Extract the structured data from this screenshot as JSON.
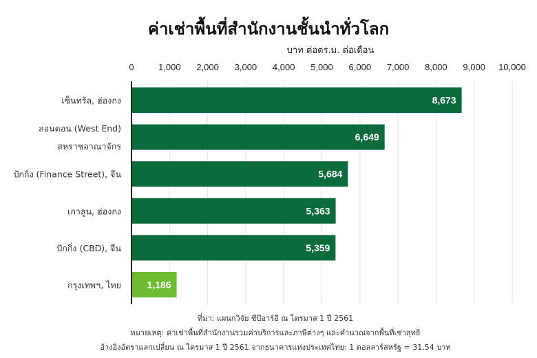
{
  "chart_data": {
    "type": "bar",
    "orientation": "horizontal",
    "title": "ค่าเช่าพื้นที่สำนักงานชั้นนำทั่วโลก",
    "xlabel": "บาท ต่อตร.ม. ต่อเดือน",
    "xlim": [
      0,
      10000
    ],
    "ticks": [
      "0",
      "1,000",
      "2,000",
      "3,000",
      "4,000",
      "5,000",
      "6,000",
      "7,000",
      "8,000",
      "9,000",
      "10,000"
    ],
    "grid": true,
    "categories": [
      [
        "เซ็นทรัล, ฮ่องกง"
      ],
      [
        "ลอนดอน (West End)",
        "สหราชอาณาจักร"
      ],
      [
        "ปักกิ่ง (Finance Street), จีน"
      ],
      [
        "เกาลูน, ฮ่องกง"
      ],
      [
        "ปักกิ่ง (CBD), จีน"
      ],
      [
        "กรุงเทพฯ, ไทย"
      ]
    ],
    "values": [
      8673,
      6649,
      5684,
      5363,
      5359,
      1186
    ],
    "labels": [
      "8,673",
      "6,649",
      "5,684",
      "5,363",
      "5,359",
      "1,186"
    ],
    "colors": [
      "#0b6b3a",
      "#0b6b3a",
      "#0b6b3a",
      "#0b6b3a",
      "#0b6b3a",
      "#6dbb2e"
    ]
  },
  "notes": [
    "ที่มา: แผนกวิจัย ซีบีอาร์อี ณ ไตรมาส 1 ปี 2561",
    "หมายเหตุ: ค่าเช่าพื้นที่สำนักงานรวมค่าบริการและภาษีต่างๆ และคำนวณจากพื้นที่เช่าสุทธิ",
    "อ้างอิงอัตราแลกเปลี่ยน ณ ไตรมาส 1 ปี 2561 จากธนาคารแห่งประเทศไทย: 1 ดอลลาร์สหรัฐ = 31.54 บาท"
  ]
}
